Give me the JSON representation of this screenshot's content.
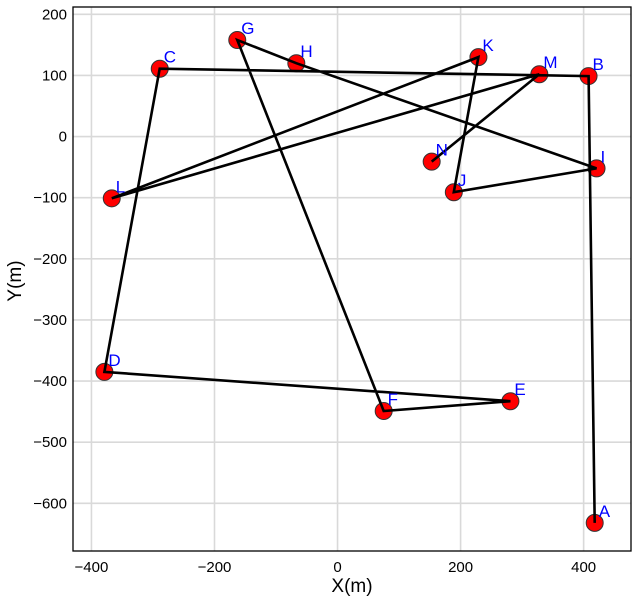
{
  "chart_data": {
    "type": "scatter",
    "title": "",
    "xlabel": "X(m)",
    "ylabel": "Y(m)",
    "xlim": [
      -430,
      477
    ],
    "ylim": [
      -678,
      212
    ],
    "xticks": [
      -400,
      -200,
      0,
      200,
      400
    ],
    "yticks": [
      200,
      100,
      0,
      -100,
      -200,
      -300,
      -400,
      -500,
      -600
    ],
    "xtick_labels": [
      "−400",
      "−200",
      "0",
      "200",
      "400"
    ],
    "ytick_labels": [
      "200",
      "100",
      "0",
      "−100",
      "−200",
      "−300",
      "−400",
      "−500",
      "−600"
    ],
    "grid": true,
    "legend": null,
    "marker_color": "#ff0000",
    "line_color": "#000000",
    "label_color": "#0000ff",
    "points": [
      {
        "label": "A",
        "x": 418,
        "y": -632
      },
      {
        "label": "B",
        "x": 408,
        "y": 99
      },
      {
        "label": "C",
        "x": -289,
        "y": 111
      },
      {
        "label": "D",
        "x": -379,
        "y": -385
      },
      {
        "label": "E",
        "x": 281,
        "y": -433
      },
      {
        "label": "F",
        "x": 75,
        "y": -449
      },
      {
        "label": "G",
        "x": -163,
        "y": 158
      },
      {
        "label": "H",
        "x": -67,
        "y": 120
      },
      {
        "label": "I",
        "x": 421,
        "y": -52
      },
      {
        "label": "J",
        "x": 189,
        "y": -91
      },
      {
        "label": "K",
        "x": 229,
        "y": 130
      },
      {
        "label": "L",
        "x": -367,
        "y": -101
      },
      {
        "label": "M",
        "x": 328,
        "y": 102
      },
      {
        "label": "N",
        "x": 153,
        "y": -41
      }
    ],
    "path_order": [
      "A",
      "B",
      "C",
      "D",
      "E",
      "F",
      "G",
      "H",
      "I",
      "J",
      "K",
      "L",
      "M",
      "N"
    ]
  }
}
